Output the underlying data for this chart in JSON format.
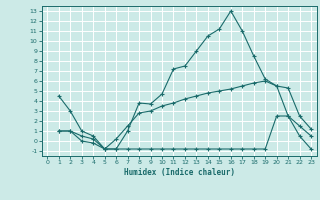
{
  "title": "",
  "xlabel": "Humidex (Indice chaleur)",
  "bg_color": "#cceae7",
  "line_color": "#1a6b6b",
  "grid_color": "#ffffff",
  "xlim": [
    -0.5,
    23.5
  ],
  "ylim": [
    -1.5,
    13.5
  ],
  "xticks": [
    0,
    1,
    2,
    3,
    4,
    5,
    6,
    7,
    8,
    9,
    10,
    11,
    12,
    13,
    14,
    15,
    16,
    17,
    18,
    19,
    20,
    21,
    22,
    23
  ],
  "yticks": [
    -1,
    0,
    1,
    2,
    3,
    4,
    5,
    6,
    7,
    8,
    9,
    10,
    11,
    12,
    13
  ],
  "series1_x": [
    1,
    2,
    3,
    4,
    5,
    6,
    7,
    8,
    9,
    10,
    11,
    12,
    13,
    14,
    15,
    16,
    17,
    18,
    19,
    20,
    21,
    22,
    23
  ],
  "series1_y": [
    4.5,
    3.0,
    1.0,
    0.5,
    -0.8,
    -0.8,
    1.0,
    3.8,
    3.7,
    4.7,
    7.2,
    7.5,
    9.0,
    10.5,
    11.2,
    13.0,
    11.0,
    8.5,
    6.2,
    5.5,
    5.3,
    2.5,
    1.2
  ],
  "series2_x": [
    1,
    2,
    3,
    4,
    5,
    6,
    7,
    8,
    9,
    10,
    11,
    12,
    13,
    14,
    15,
    16,
    17,
    18,
    19,
    20,
    21,
    22,
    23
  ],
  "series2_y": [
    1.0,
    1.0,
    0.5,
    0.2,
    -0.8,
    0.2,
    1.5,
    2.8,
    3.0,
    3.5,
    3.8,
    4.2,
    4.5,
    4.8,
    5.0,
    5.2,
    5.5,
    5.8,
    6.0,
    5.5,
    2.5,
    1.5,
    0.5
  ],
  "series3_x": [
    1,
    2,
    3,
    4,
    5,
    6,
    7,
    8,
    9,
    10,
    11,
    12,
    13,
    14,
    15,
    16,
    17,
    18,
    19,
    20,
    21,
    22,
    23
  ],
  "series3_y": [
    1.0,
    1.0,
    0.0,
    -0.2,
    -0.8,
    -0.8,
    -0.8,
    -0.8,
    -0.8,
    -0.8,
    -0.8,
    -0.8,
    -0.8,
    -0.8,
    -0.8,
    -0.8,
    -0.8,
    -0.8,
    -0.8,
    2.5,
    2.5,
    0.5,
    -0.8
  ]
}
